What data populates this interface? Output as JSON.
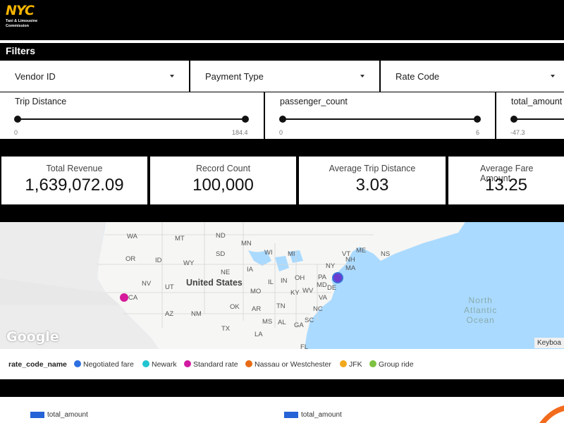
{
  "logo": {
    "nyc": "NYC",
    "sub_line1": "Taxi & Limousine",
    "sub_line2": "Commission"
  },
  "filters": {
    "title": "Filters",
    "dropdowns": [
      {
        "label": "Vendor ID"
      },
      {
        "label": "Payment Type"
      },
      {
        "label": "Rate Code"
      }
    ],
    "sliders": [
      {
        "label": "Trip Distance",
        "min": "0",
        "max": "184.4"
      },
      {
        "label": "passenger_count",
        "min": "0",
        "max": "6"
      },
      {
        "label": "total_amount",
        "min": "-47.3",
        "max": ""
      }
    ]
  },
  "kpis": [
    {
      "label": "Total Revenue",
      "value": "1,639,072.09"
    },
    {
      "label": "Record Count",
      "value": "100,000"
    },
    {
      "label": "Average Trip Distance",
      "value": "3.03"
    },
    {
      "label": "Average Fare Amount",
      "value": "13.25"
    }
  ],
  "map": {
    "country": "United States",
    "ocean_lines": [
      "North",
      "Atlantic",
      "Ocean"
    ],
    "states": [
      "WA",
      "MT",
      "ND",
      "MN",
      "OR",
      "ID",
      "SD",
      "WI",
      "WY",
      "MI",
      "NE",
      "IA",
      "NV",
      "UT",
      "IL",
      "IN",
      "OH",
      "PA",
      "NY",
      "VT",
      "NH",
      "ME",
      "NS",
      "MA",
      "CA",
      "MO",
      "KY",
      "WV",
      "MD",
      "DE",
      "VA",
      "AZ",
      "NM",
      "OK",
      "AR",
      "TN",
      "NC",
      "SC",
      "TX",
      "MS",
      "AL",
      "GA",
      "LA",
      "FL"
    ],
    "attribution": "Google",
    "keyboard_label": "Keyboa",
    "point_colors": {
      "magenta": "#d6199a",
      "blue": "#3b6fd8"
    }
  },
  "legend": {
    "title": "rate_code_name",
    "items": [
      {
        "label": "Negotiated fare",
        "color": "#2d6fe0"
      },
      {
        "label": "Newark",
        "color": "#22c4cf"
      },
      {
        "label": "Standard rate",
        "color": "#d21aa1"
      },
      {
        "label": "Nassau or Westchester",
        "color": "#e86a14"
      },
      {
        "label": "JFK",
        "color": "#f2a81d"
      },
      {
        "label": "Group ride",
        "color": "#7dc242"
      }
    ]
  },
  "bottom": {
    "legend_left": "total_amount",
    "legend_right": "total_amount"
  }
}
